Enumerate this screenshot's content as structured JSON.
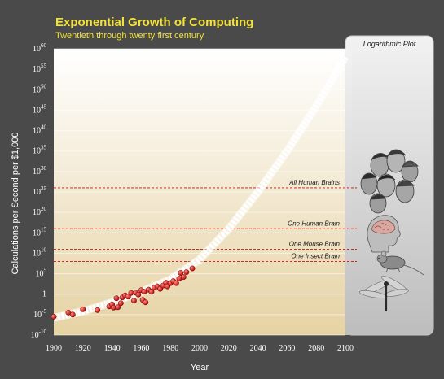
{
  "colors": {
    "background": "#4a4a4a",
    "title": "#f2e23a",
    "point": "#d01818",
    "threshold_line": "#cc1111",
    "trend": "#ffffff",
    "plot_top": "#ffffff",
    "plot_bottom": "#e6d3a4"
  },
  "chart_data": {
    "type": "scatter",
    "title": "Exponential Growth of Computing",
    "subtitle": "Twentieth through twenty first century",
    "xlabel": "Year",
    "ylabel": "Calculations per Second per $1,000",
    "y_scale": "log10",
    "xlim": [
      1900,
      2100
    ],
    "ylim": [
      -10,
      60
    ],
    "x_ticks": [
      1900,
      1920,
      1940,
      1960,
      1980,
      2000,
      2020,
      2040,
      2060,
      2080,
      2100
    ],
    "y_ticks": [
      {
        "base": "10",
        "exp": "-10",
        "value": -10
      },
      {
        "base": "10",
        "exp": "-5",
        "value": -5
      },
      {
        "base": "1",
        "exp": "",
        "value": 0
      },
      {
        "base": "10",
        "exp": "5",
        "value": 5
      },
      {
        "base": "10",
        "exp": "10",
        "value": 10
      },
      {
        "base": "10",
        "exp": "15",
        "value": 15
      },
      {
        "base": "10",
        "exp": "20",
        "value": 20
      },
      {
        "base": "10",
        "exp": "25",
        "value": 25
      },
      {
        "base": "10",
        "exp": "30",
        "value": 30
      },
      {
        "base": "10",
        "exp": "35",
        "value": 35
      },
      {
        "base": "10",
        "exp": "40",
        "value": 40
      },
      {
        "base": "10",
        "exp": "45",
        "value": 45
      },
      {
        "base": "10",
        "exp": "50",
        "value": 50
      },
      {
        "base": "10",
        "exp": "55",
        "value": 55
      },
      {
        "base": "10",
        "exp": "60",
        "value": 60
      }
    ],
    "data_points": [
      {
        "year": 1900,
        "log_value": -5.5
      },
      {
        "year": 1910,
        "log_value": -4.5
      },
      {
        "year": 1913,
        "log_value": -5.0
      },
      {
        "year": 1920,
        "log_value": -3.7
      },
      {
        "year": 1930,
        "log_value": -3.9
      },
      {
        "year": 1938,
        "log_value": -3.0
      },
      {
        "year": 1940,
        "log_value": -2.5
      },
      {
        "year": 1941,
        "log_value": -3.3
      },
      {
        "year": 1943,
        "log_value": -1.0
      },
      {
        "year": 1944,
        "log_value": -3.2
      },
      {
        "year": 1946,
        "log_value": -2.2
      },
      {
        "year": 1947,
        "log_value": -0.8
      },
      {
        "year": 1949,
        "log_value": -0.3
      },
      {
        "year": 1951,
        "log_value": -0.6
      },
      {
        "year": 1953,
        "log_value": 0.3
      },
      {
        "year": 1955,
        "log_value": -1.6
      },
      {
        "year": 1956,
        "log_value": 0.4
      },
      {
        "year": 1958,
        "log_value": -0.1
      },
      {
        "year": 1960,
        "log_value": 1.0
      },
      {
        "year": 1961,
        "log_value": -1.4
      },
      {
        "year": 1962,
        "log_value": 0.6
      },
      {
        "year": 1963,
        "log_value": -2.0
      },
      {
        "year": 1965,
        "log_value": 1.1
      },
      {
        "year": 1967,
        "log_value": 0.6
      },
      {
        "year": 1969,
        "log_value": 1.6
      },
      {
        "year": 1971,
        "log_value": 1.9
      },
      {
        "year": 1973,
        "log_value": 1.3
      },
      {
        "year": 1975,
        "log_value": 2.1
      },
      {
        "year": 1977,
        "log_value": 2.8
      },
      {
        "year": 1978,
        "log_value": 1.9
      },
      {
        "year": 1980,
        "log_value": 2.7
      },
      {
        "year": 1982,
        "log_value": 3.2
      },
      {
        "year": 1984,
        "log_value": 2.7
      },
      {
        "year": 1986,
        "log_value": 3.8
      },
      {
        "year": 1987,
        "log_value": 5.2
      },
      {
        "year": 1989,
        "log_value": 4.2
      },
      {
        "year": 1991,
        "log_value": 5.4
      },
      {
        "year": 1995,
        "log_value": 6.3
      }
    ],
    "trend_line": {
      "style": "white-dashed-band",
      "x": [
        1900,
        1920,
        1940,
        1960,
        1980,
        2000,
        2020,
        2040,
        2060,
        2080,
        2100
      ],
      "log_value": [
        -5.8,
        -4.2,
        -2.0,
        0.6,
        3.6,
        8.5,
        16.0,
        25.0,
        35.0,
        46.0,
        58.0
      ]
    },
    "thresholds": [
      {
        "label": "All Human Brains",
        "log_value": 26
      },
      {
        "label": "One Human Brain",
        "log_value": 16
      },
      {
        "label": "One Mouse Brain",
        "log_value": 11
      },
      {
        "label": "One Insect Brain",
        "log_value": 8
      }
    ],
    "side_panel": {
      "title": "Logarithmic Plot",
      "icons": [
        "group-of-human-heads-icon",
        "human-brain-head-icon",
        "mouse-icon",
        "dragonfly-icon"
      ]
    },
    "grid": true
  }
}
